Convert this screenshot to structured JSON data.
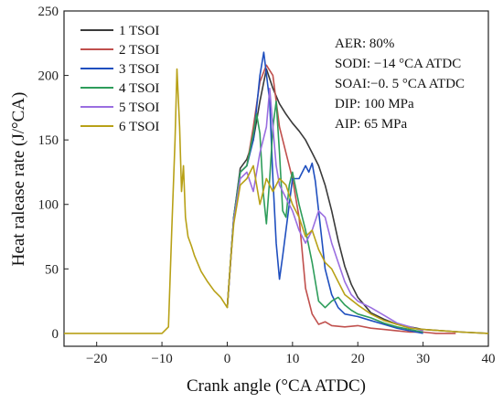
{
  "chart_data": {
    "type": "line",
    "title": "",
    "xlabel": "Crank angle (°CA ATDC)",
    "ylabel": "Heat ralease rate (J/°CA)",
    "xlim": [
      -25,
      40
    ],
    "ylim": [
      -10,
      250
    ],
    "xticks": [
      -20,
      -10,
      0,
      10,
      20,
      30,
      40
    ],
    "yticks": [
      0,
      50,
      100,
      150,
      200,
      250
    ],
    "grid": false,
    "legend_position": "top-left",
    "annotations": [
      "AER: 80%",
      "SODI: −14 °CA ATDC",
      "SOAI:−0. 5 °CA ATDC",
      "DIP: 100 MPa",
      "AIP: 65 MPa"
    ],
    "series": [
      {
        "name": "1 TSOI",
        "color": "#3a3a3a",
        "x": [
          0,
          1,
          2,
          3,
          4,
          5,
          6,
          7,
          8,
          9,
          10,
          11,
          12,
          13,
          14,
          15,
          16,
          17,
          18,
          19,
          20,
          21,
          22,
          24,
          26,
          28,
          30,
          33,
          36,
          40
        ],
        "y": [
          20,
          90,
          128,
          135,
          150,
          180,
          205,
          190,
          178,
          170,
          163,
          157,
          150,
          140,
          130,
          115,
          95,
          72,
          52,
          38,
          28,
          22,
          16,
          11,
          7,
          5,
          3,
          2,
          1,
          0
        ]
      },
      {
        "name": "2 TSOI",
        "color": "#c0504d",
        "x": [
          0,
          1,
          2,
          3,
          4,
          5,
          6,
          7,
          8,
          9,
          10,
          11,
          12,
          13,
          14,
          15,
          16,
          18,
          20,
          22,
          24,
          26,
          28,
          30,
          32,
          35
        ],
        "y": [
          20,
          90,
          125,
          130,
          160,
          195,
          208,
          200,
          160,
          140,
          120,
          90,
          35,
          15,
          7,
          9,
          6,
          5,
          6,
          4,
          3,
          2,
          1,
          1,
          0,
          0
        ]
      },
      {
        "name": "3 TSOI",
        "color": "#1f4fbf",
        "x": [
          0,
          1,
          2,
          3,
          4,
          5,
          5.6,
          6.5,
          7,
          7.5,
          8,
          8.5,
          9,
          9.5,
          10,
          11,
          12,
          12.5,
          13,
          13.5,
          14,
          15,
          16,
          17,
          18,
          19,
          20,
          22,
          24,
          26,
          28,
          30
        ],
        "y": [
          20,
          90,
          125,
          130,
          150,
          200,
          218,
          180,
          120,
          70,
          42,
          60,
          80,
          100,
          120,
          120,
          130,
          125,
          132,
          118,
          95,
          50,
          30,
          20,
          15,
          14,
          13,
          10,
          7,
          4,
          2,
          0
        ]
      },
      {
        "name": "4 TSOI",
        "color": "#2e9d5b",
        "x": [
          0,
          1,
          2,
          3,
          4,
          4.5,
          5,
          5.5,
          6,
          6.5,
          7,
          7.5,
          8,
          8.5,
          9,
          9.5,
          10,
          11,
          12,
          13,
          14,
          15,
          16,
          17,
          18,
          19,
          20,
          22,
          24,
          26,
          28,
          30
        ],
        "y": [
          20,
          90,
          125,
          130,
          155,
          170,
          155,
          110,
          85,
          120,
          160,
          180,
          140,
          95,
          90,
          115,
          125,
          100,
          80,
          55,
          25,
          20,
          25,
          28,
          22,
          18,
          15,
          12,
          8,
          5,
          3,
          1
        ]
      },
      {
        "name": "5 TSOI",
        "color": "#9a6ee0",
        "x": [
          0,
          1,
          2,
          3,
          4,
          5,
          6,
          6.5,
          7,
          7.5,
          8,
          9,
          10,
          11,
          12,
          13,
          14,
          15,
          16,
          17,
          18,
          19,
          20,
          22,
          24,
          26,
          28,
          30
        ],
        "y": [
          20,
          88,
          120,
          125,
          110,
          140,
          160,
          190,
          160,
          130,
          115,
          105,
          95,
          80,
          70,
          80,
          95,
          90,
          70,
          55,
          40,
          30,
          25,
          20,
          14,
          8,
          5,
          2
        ]
      },
      {
        "name": "6 TSOI",
        "color": "#b8a117",
        "x": [
          -25,
          -10,
          -9,
          -8.5,
          -8,
          -7.7,
          -7.3,
          -7,
          -6.7,
          -6.4,
          -6,
          -5.5,
          -5,
          -4,
          -3,
          -2,
          -1,
          0,
          0.5,
          1,
          2,
          3,
          4,
          5,
          6,
          7,
          8,
          9,
          10,
          11,
          12,
          13,
          14,
          15,
          16,
          17,
          18,
          20,
          22,
          24,
          26,
          28,
          30,
          33,
          36,
          40
        ],
        "y": [
          0,
          0,
          5,
          80,
          150,
          205,
          160,
          110,
          130,
          90,
          75,
          68,
          60,
          48,
          40,
          33,
          28,
          20,
          55,
          85,
          115,
          120,
          130,
          100,
          120,
          110,
          120,
          115,
          100,
          90,
          75,
          80,
          65,
          55,
          50,
          40,
          30,
          22,
          15,
          10,
          7,
          4,
          3,
          2,
          1,
          0
        ]
      }
    ]
  }
}
